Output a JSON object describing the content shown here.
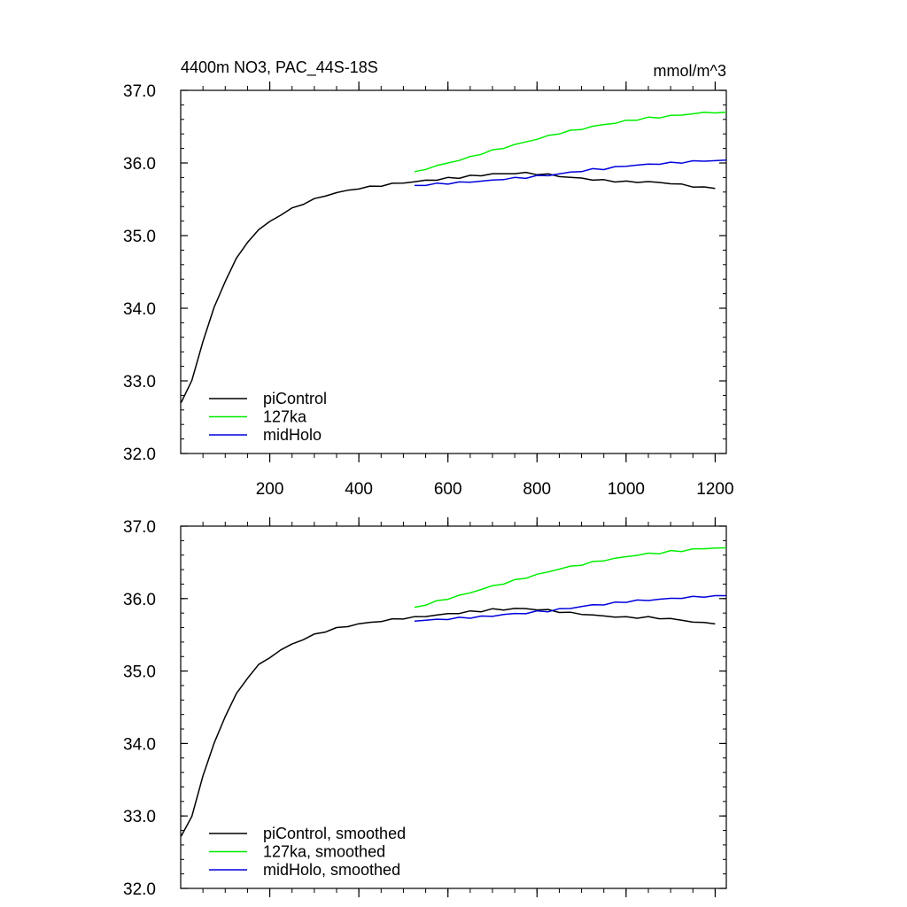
{
  "title_left": "4400m NO3, PAC_44S-18S",
  "title_right": "mmol/m^3",
  "chart_data": [
    {
      "type": "line",
      "xlim": [
        0,
        1225
      ],
      "ylim": [
        32.0,
        37.0
      ],
      "yticks": [
        32.0,
        33.0,
        34.0,
        35.0,
        36.0,
        37.0
      ],
      "ytick_labels": [
        "32.0",
        "33.0",
        "34.0",
        "35.0",
        "36.0",
        "37.0"
      ],
      "xticks": [
        200,
        400,
        600,
        800,
        1000,
        1200
      ],
      "xtick_labels": [
        "200",
        "400",
        "600",
        "800",
        "1000",
        "1200"
      ],
      "legend_position": "bottom-left",
      "series": [
        {
          "name": "piControl",
          "color": "#000000",
          "x": [
            1,
            25,
            50,
            75,
            100,
            125,
            150,
            175,
            200,
            225,
            250,
            275,
            300,
            325,
            350,
            375,
            400,
            425,
            450,
            475,
            500,
            525,
            550,
            575,
            600,
            625,
            650,
            675,
            700,
            725,
            750,
            775,
            800,
            825,
            850,
            875,
            900,
            925,
            950,
            975,
            1000,
            1025,
            1050,
            1075,
            1100,
            1125,
            1150,
            1175,
            1200
          ],
          "y": [
            32.7,
            33.0,
            33.55,
            34.0,
            34.38,
            34.68,
            34.91,
            35.08,
            35.19,
            35.29,
            35.37,
            35.44,
            35.5,
            35.55,
            35.59,
            35.62,
            35.65,
            35.67,
            35.69,
            35.71,
            35.73,
            35.74,
            35.76,
            35.77,
            35.79,
            35.8,
            35.82,
            35.83,
            35.85,
            35.85,
            35.86,
            35.86,
            35.85,
            35.84,
            35.82,
            35.8,
            35.79,
            35.77,
            35.76,
            35.75,
            35.74,
            35.74,
            35.74,
            35.73,
            35.72,
            35.7,
            35.68,
            35.66,
            35.65
          ]
        },
        {
          "name": "127ka",
          "color": "#00ee00",
          "x": [
            525,
            550,
            575,
            600,
            625,
            650,
            675,
            700,
            725,
            750,
            775,
            800,
            825,
            850,
            875,
            900,
            925,
            950,
            975,
            1000,
            1025,
            1050,
            1075,
            1100,
            1125,
            1150,
            1175,
            1200,
            1225
          ],
          "y": [
            35.88,
            35.92,
            35.96,
            36.0,
            36.04,
            36.08,
            36.13,
            36.17,
            36.21,
            36.25,
            36.29,
            36.33,
            36.37,
            36.41,
            36.44,
            36.47,
            36.5,
            36.53,
            36.55,
            36.58,
            36.6,
            36.62,
            36.63,
            36.65,
            36.66,
            36.68,
            36.69,
            36.7,
            36.7
          ]
        },
        {
          "name": "midHolo",
          "color": "#0000dd",
          "x": [
            525,
            550,
            575,
            600,
            625,
            650,
            675,
            700,
            725,
            750,
            775,
            800,
            825,
            850,
            875,
            900,
            925,
            950,
            975,
            1000,
            1025,
            1050,
            1075,
            1100,
            1125,
            1150,
            1175,
            1200,
            1225
          ],
          "y": [
            35.69,
            35.7,
            35.71,
            35.72,
            35.73,
            35.74,
            35.75,
            35.76,
            35.78,
            35.79,
            35.8,
            35.82,
            35.83,
            35.85,
            35.87,
            35.89,
            35.91,
            35.92,
            35.94,
            35.96,
            35.97,
            35.98,
            35.99,
            36.0,
            36.01,
            36.02,
            36.03,
            36.03,
            36.04
          ]
        }
      ]
    },
    {
      "type": "line",
      "xlim": [
        0,
        1225
      ],
      "ylim": [
        32.0,
        37.0
      ],
      "yticks": [
        32.0,
        33.0,
        34.0,
        35.0,
        36.0,
        37.0
      ],
      "ytick_labels": [
        "32.0",
        "33.0",
        "34.0",
        "35.0",
        "36.0",
        "37.0"
      ],
      "xticks": [
        200,
        400,
        600,
        800,
        1000,
        1200
      ],
      "xtick_labels": [],
      "legend_position": "bottom-left",
      "series": [
        {
          "name": "piControl, smoothed",
          "color": "#000000",
          "x": [
            1,
            25,
            50,
            75,
            100,
            125,
            150,
            175,
            200,
            225,
            250,
            275,
            300,
            325,
            350,
            375,
            400,
            425,
            450,
            475,
            500,
            525,
            550,
            575,
            600,
            625,
            650,
            675,
            700,
            725,
            750,
            775,
            800,
            825,
            850,
            875,
            900,
            925,
            950,
            975,
            1000,
            1025,
            1050,
            1075,
            1100,
            1125,
            1150,
            1175,
            1200
          ],
          "y": [
            32.72,
            33.0,
            33.55,
            34.0,
            34.38,
            34.68,
            34.91,
            35.08,
            35.19,
            35.29,
            35.37,
            35.44,
            35.5,
            35.55,
            35.59,
            35.62,
            35.65,
            35.67,
            35.69,
            35.71,
            35.73,
            35.74,
            35.76,
            35.77,
            35.79,
            35.8,
            35.82,
            35.83,
            35.85,
            35.85,
            35.86,
            35.86,
            35.85,
            35.84,
            35.82,
            35.8,
            35.79,
            35.77,
            35.76,
            35.75,
            35.74,
            35.74,
            35.74,
            35.73,
            35.72,
            35.7,
            35.68,
            35.66,
            35.65
          ]
        },
        {
          "name": "127ka, smoothed",
          "color": "#00ee00",
          "x": [
            525,
            550,
            575,
            600,
            625,
            650,
            675,
            700,
            725,
            750,
            775,
            800,
            825,
            850,
            875,
            900,
            925,
            950,
            975,
            1000,
            1025,
            1050,
            1075,
            1100,
            1125,
            1150,
            1175,
            1200,
            1225
          ],
          "y": [
            35.88,
            35.92,
            35.96,
            36.0,
            36.04,
            36.08,
            36.13,
            36.17,
            36.21,
            36.25,
            36.29,
            36.33,
            36.37,
            36.41,
            36.44,
            36.47,
            36.5,
            36.53,
            36.55,
            36.58,
            36.6,
            36.62,
            36.63,
            36.65,
            36.66,
            36.68,
            36.69,
            36.7,
            36.7
          ]
        },
        {
          "name": "midHolo, smoothed",
          "color": "#0000dd",
          "x": [
            525,
            550,
            575,
            600,
            625,
            650,
            675,
            700,
            725,
            750,
            775,
            800,
            825,
            850,
            875,
            900,
            925,
            950,
            975,
            1000,
            1025,
            1050,
            1075,
            1100,
            1125,
            1150,
            1175,
            1200,
            1225
          ],
          "y": [
            35.69,
            35.7,
            35.71,
            35.72,
            35.73,
            35.74,
            35.75,
            35.76,
            35.78,
            35.79,
            35.8,
            35.82,
            35.83,
            35.85,
            35.87,
            35.89,
            35.91,
            35.92,
            35.94,
            35.96,
            35.97,
            35.98,
            35.99,
            36.0,
            36.01,
            36.02,
            36.03,
            36.03,
            36.04
          ]
        }
      ]
    }
  ]
}
